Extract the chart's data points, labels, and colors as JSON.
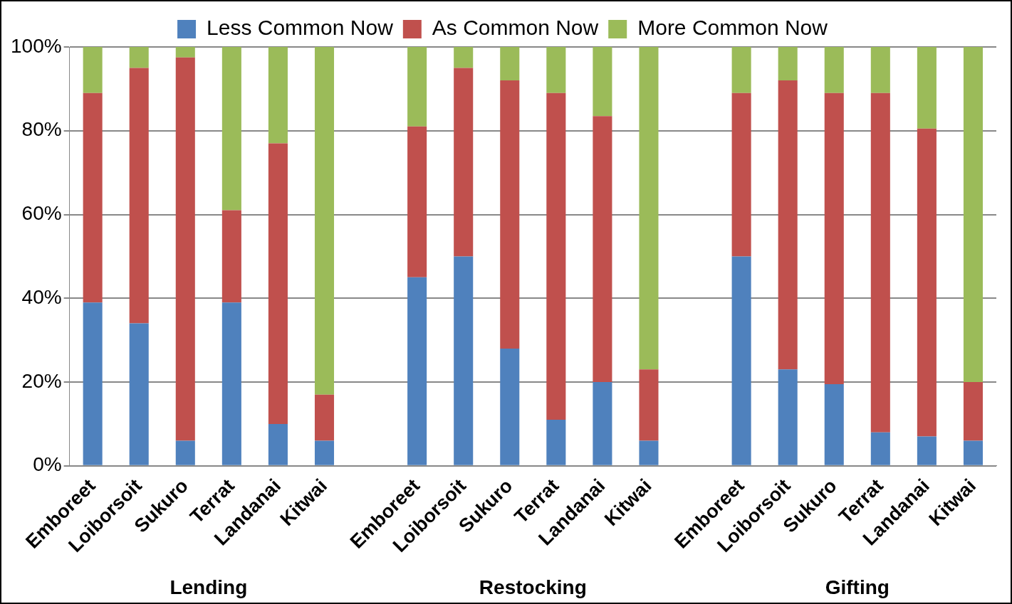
{
  "chart_data": {
    "type": "bar",
    "stacked": true,
    "categories": [
      "Emboreet",
      "Loiborsoit",
      "Sukuro",
      "Terrat",
      "Landanai",
      "Kitwai",
      null,
      "Emboreet",
      "Loiborsoit",
      "Sukuro",
      "Terrat",
      "Landanai",
      "Kitwai",
      null,
      "Emboreet",
      "Loiborsoit",
      "Sukuro",
      "Terrat",
      "Landanai",
      "Kitwai"
    ],
    "series": [
      {
        "name": "Less Common Now",
        "color": "#4f81bd",
        "values": [
          39,
          34,
          6,
          39,
          10,
          6,
          null,
          45,
          50,
          28,
          11,
          20,
          6,
          null,
          50,
          23,
          19.5,
          8,
          7,
          6
        ]
      },
      {
        "name": "As Common Now",
        "color": "#c0504d",
        "values": [
          50,
          61,
          91.5,
          22,
          67,
          11,
          null,
          36,
          45,
          64,
          78,
          63.5,
          17,
          null,
          39,
          69,
          69.5,
          81,
          73.5,
          14
        ]
      },
      {
        "name": "More Common Now",
        "color": "#9bbb59",
        "values": [
          11,
          5,
          2.5,
          39,
          23,
          83,
          null,
          19,
          5,
          8,
          11,
          16.5,
          77,
          null,
          11,
          8,
          11,
          11,
          19.5,
          80
        ]
      }
    ],
    "ylim": [
      0,
      100
    ],
    "yticks": [
      {
        "value": 0,
        "label": "0%"
      },
      {
        "value": 20,
        "label": "20%"
      },
      {
        "value": 40,
        "label": "40%"
      },
      {
        "value": 60,
        "label": "60%"
      },
      {
        "value": 80,
        "label": "80%"
      },
      {
        "value": 100,
        "label": "100%"
      }
    ],
    "grid": "y",
    "legend": "top",
    "annotations": [
      "Lending",
      "Restocking",
      "Gifting"
    ]
  }
}
